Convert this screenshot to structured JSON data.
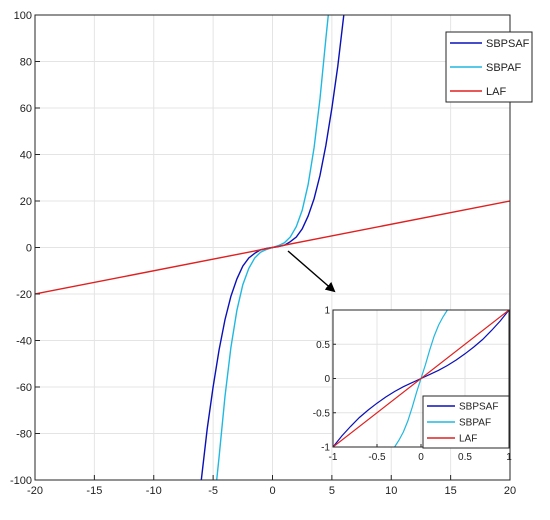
{
  "chart_data": [
    {
      "type": "line",
      "role": "main",
      "xlim": [
        -20,
        20
      ],
      "ylim": [
        -100,
        100
      ],
      "xticks": [
        -20,
        -15,
        -10,
        -5,
        0,
        5,
        10,
        15,
        20
      ],
      "yticks": [
        -100,
        -80,
        -60,
        -40,
        -20,
        0,
        20,
        40,
        60,
        80,
        100
      ],
      "xtick_labels": [
        "-20",
        "-15",
        "-10",
        "-5",
        "0",
        "5",
        "10",
        "15",
        "20"
      ],
      "ytick_labels": [
        "-100",
        "-80",
        "-60",
        "-40",
        "-20",
        "0",
        "20",
        "40",
        "60",
        "80",
        "100"
      ],
      "grid": true,
      "legend_position": "top-right",
      "series": [
        {
          "name": "SBPSAF",
          "color": "#0a10b8",
          "x": [
            -6,
            -5.5,
            -5,
            -4.5,
            -4,
            -3.5,
            -3,
            -2.5,
            -2,
            -1.5,
            -1,
            -0.5,
            0,
            0.5,
            1,
            1.5,
            2,
            2.5,
            3,
            3.5,
            4,
            4.5,
            5,
            5.5,
            6
          ],
          "y": [
            -100,
            -78,
            -60,
            -44,
            -31,
            -21,
            -13.5,
            -8,
            -4.5,
            -2.5,
            -1,
            -0.4,
            0,
            0.4,
            1,
            2.5,
            4.5,
            8,
            13.5,
            21,
            31,
            44,
            60,
            78,
            100
          ]
        },
        {
          "name": "SBPAF",
          "color": "#20b8e0",
          "x": [
            -4.7,
            -4.5,
            -4,
            -3.5,
            -3,
            -2.5,
            -2,
            -1.5,
            -1,
            -0.5,
            0,
            0.5,
            1,
            1.5,
            2,
            2.5,
            3,
            3.5,
            4,
            4.5,
            4.7
          ],
          "y": [
            -100,
            -90,
            -64,
            -43,
            -27,
            -16,
            -9,
            -4.5,
            -2,
            -0.8,
            0,
            0.8,
            2,
            4.5,
            9,
            16,
            27,
            43,
            64,
            90,
            100
          ]
        },
        {
          "name": "LAF",
          "color": "#e02020",
          "x": [
            -20,
            20
          ],
          "y": [
            -20,
            20
          ]
        }
      ]
    },
    {
      "type": "line",
      "role": "inset",
      "xlim": [
        -1,
        1
      ],
      "ylim": [
        -1,
        1
      ],
      "xticks": [
        -1,
        -0.5,
        0,
        0.5,
        1
      ],
      "yticks": [
        -1,
        -0.5,
        0,
        0.5,
        1
      ],
      "xtick_labels": [
        "-1",
        "-0.5",
        "0",
        "0.5",
        "1"
      ],
      "ytick_labels": [
        "-1",
        "-0.5",
        "0",
        "0.5",
        "1"
      ],
      "grid": true,
      "legend_position": "bottom-right",
      "series": [
        {
          "name": "SBPSAF",
          "color": "#0a10b8",
          "x": [
            -1,
            -0.9,
            -0.8,
            -0.7,
            -0.6,
            -0.5,
            -0.4,
            -0.3,
            -0.2,
            -0.1,
            0,
            0.1,
            0.2,
            0.3,
            0.4,
            0.5,
            0.6,
            0.7,
            0.8,
            0.9,
            1
          ],
          "y": [
            -1,
            -0.84,
            -0.7,
            -0.57,
            -0.46,
            -0.36,
            -0.27,
            -0.19,
            -0.12,
            -0.06,
            0,
            0.06,
            0.12,
            0.19,
            0.27,
            0.36,
            0.46,
            0.57,
            0.7,
            0.84,
            1
          ]
        },
        {
          "name": "SBPAF",
          "color": "#20b8e0",
          "x": [
            -0.3,
            -0.25,
            -0.2,
            -0.15,
            -0.1,
            -0.05,
            0,
            0.05,
            0.1,
            0.15,
            0.2,
            0.25,
            0.3
          ],
          "y": [
            -1,
            -0.9,
            -0.78,
            -0.62,
            -0.42,
            -0.2,
            0,
            0.2,
            0.42,
            0.62,
            0.78,
            0.9,
            1
          ]
        },
        {
          "name": "LAF",
          "color": "#e02020",
          "x": [
            -1,
            1
          ],
          "y": [
            -1,
            1
          ]
        }
      ]
    }
  ]
}
